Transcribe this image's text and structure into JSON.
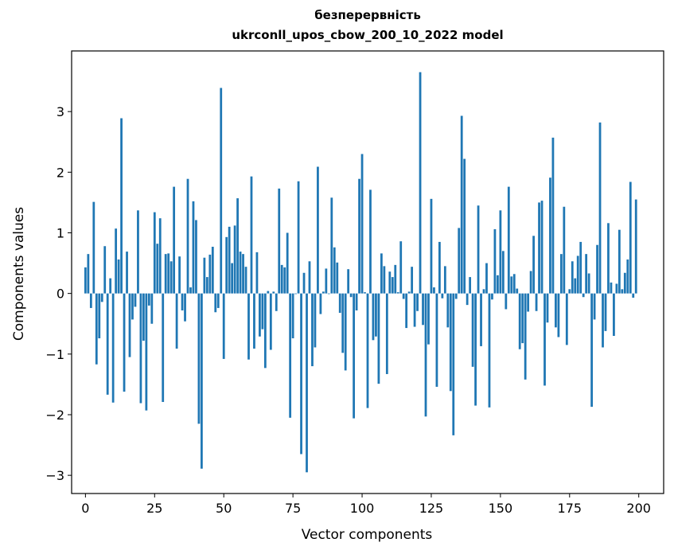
{
  "chart_data": {
    "type": "bar",
    "title_line1": "безперервність",
    "title_line2": "ukrconll_upos_cbow_200_10_2022 model",
    "xlabel": "Vector components",
    "ylabel": "Components values",
    "xlim": [
      -5,
      209
    ],
    "ylim": [
      -3.3,
      4.0
    ],
    "xticks": [
      0,
      25,
      50,
      75,
      100,
      125,
      150,
      175,
      200
    ],
    "yticks": [
      -3,
      -2,
      -1,
      0,
      1,
      2,
      3
    ],
    "bar_color": "#1f77b4",
    "grid": false,
    "values": [
      0.43,
      0.65,
      -0.24,
      1.51,
      -1.17,
      -0.74,
      -0.14,
      0.78,
      -1.67,
      0.25,
      -1.8,
      1.07,
      0.56,
      2.89,
      -1.62,
      0.69,
      -1.05,
      -0.43,
      -0.22,
      1.37,
      -1.81,
      -0.78,
      -1.93,
      -0.2,
      -0.5,
      1.34,
      0.82,
      1.24,
      -1.79,
      0.65,
      0.66,
      0.53,
      1.76,
      -0.91,
      0.61,
      -0.28,
      -0.46,
      1.89,
      0.1,
      1.52,
      1.21,
      -2.15,
      -2.89,
      0.59,
      0.27,
      0.64,
      0.77,
      -0.31,
      -0.24,
      3.39,
      -1.08,
      0.93,
      1.1,
      0.5,
      1.12,
      1.57,
      0.69,
      0.65,
      0.44,
      -1.09,
      1.93,
      -0.91,
      0.68,
      -0.71,
      -0.59,
      -1.23,
      0.04,
      -0.93,
      0.03,
      -0.29,
      1.73,
      0.47,
      0.43,
      1.0,
      -2.05,
      -0.74,
      -0.01,
      1.85,
      -2.65,
      0.34,
      -2.95,
      0.53,
      -1.2,
      -0.89,
      2.09,
      -0.34,
      0.03,
      0.41,
      -0.01,
      1.58,
      0.76,
      0.51,
      -0.32,
      -0.98,
      -1.27,
      0.4,
      -0.06,
      -2.06,
      -0.28,
      1.89,
      2.3,
      0.02,
      -1.89,
      1.71,
      -0.77,
      -0.71,
      -1.49,
      0.66,
      0.45,
      -1.33,
      0.36,
      0.27,
      0.47,
      0.02,
      0.86,
      -0.09,
      -0.57,
      0.03,
      0.44,
      -0.55,
      -0.29,
      3.65,
      -0.52,
      -2.03,
      -0.84,
      1.56,
      0.1,
      -1.54,
      0.85,
      -0.08,
      0.45,
      -0.56,
      -1.61,
      -2.34,
      -0.09,
      1.08,
      2.93,
      2.22,
      -0.19,
      0.27,
      -1.21,
      -1.85,
      1.45,
      -0.87,
      0.07,
      0.5,
      -1.88,
      -0.1,
      1.06,
      0.3,
      1.37,
      0.7,
      -0.26,
      1.76,
      0.28,
      0.32,
      0.08,
      -0.92,
      -0.82,
      -1.42,
      -0.3,
      0.37,
      0.95,
      -0.29,
      1.5,
      1.53,
      -1.52,
      -0.48,
      1.91,
      2.57,
      -0.56,
      -0.72,
      0.65,
      1.43,
      -0.85,
      0.07,
      0.53,
      0.25,
      0.62,
      0.85,
      -0.06,
      0.65,
      0.33,
      -1.87,
      -0.43,
      0.8,
      2.82,
      -0.89,
      -0.62,
      1.16,
      0.18,
      -0.7,
      0.16,
      1.05,
      0.07,
      0.34,
      0.56,
      1.84,
      -0.07,
      1.55
    ]
  }
}
